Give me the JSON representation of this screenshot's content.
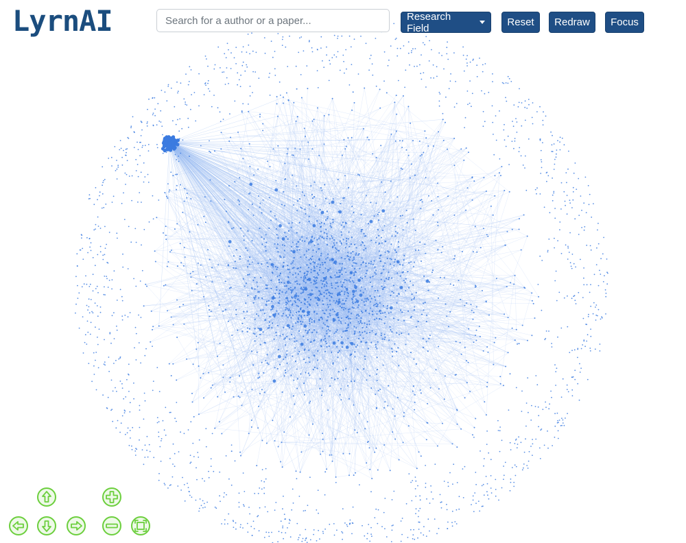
{
  "app": {
    "logo_text": "LyrnAI"
  },
  "search": {
    "placeholder": "Search for a author or a paper..."
  },
  "toolbar": {
    "research_field_label": "Research Field",
    "reset_label": "Reset",
    "redraw_label": "Redraw",
    "focus_label": "Focus"
  },
  "navigation": {
    "controls": [
      {
        "name": "pan-up-icon"
      },
      {
        "name": "pan-down-icon"
      },
      {
        "name": "pan-left-icon"
      },
      {
        "name": "pan-right-icon"
      },
      {
        "name": "zoom-in-icon"
      },
      {
        "name": "zoom-out-icon"
      },
      {
        "name": "fit-view-icon"
      }
    ]
  },
  "colors": {
    "node": "#3b7be0",
    "edge": "#9bbcf2",
    "button": "#1f4e85",
    "logo": "#1b4d7e",
    "nav_icon": "#6ccf3d"
  }
}
